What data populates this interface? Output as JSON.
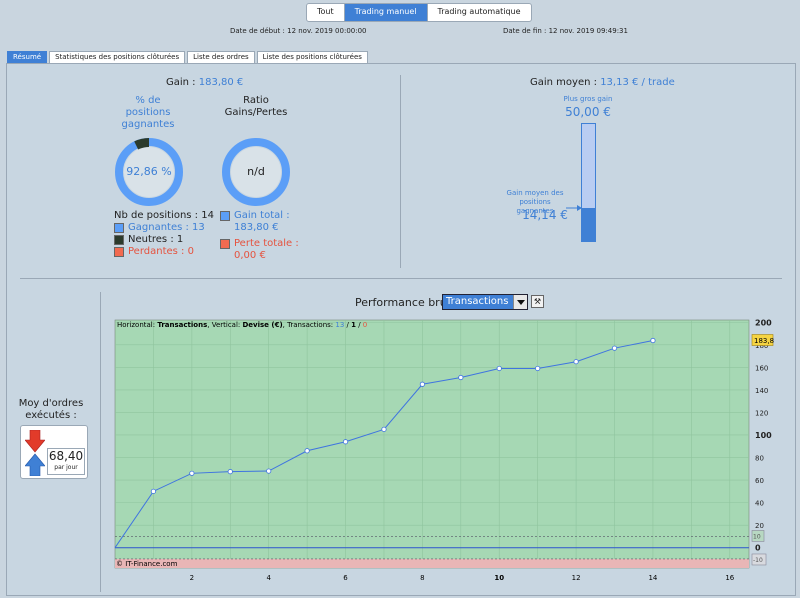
{
  "mode_tabs": [
    {
      "label": "Tout",
      "active": false
    },
    {
      "label": "Trading manuel",
      "active": true
    },
    {
      "label": "Trading automatique",
      "active": false
    }
  ],
  "dates": {
    "start": "Date de début : 12 nov. 2019 00:00:00",
    "end": "Date de fin : 12 nov. 2019 09:49:31"
  },
  "subtabs": [
    {
      "label": "Résumé",
      "active": true
    },
    {
      "label": "Statistiques des positions clôturées",
      "active": false
    },
    {
      "label": "Liste des ordres",
      "active": false
    },
    {
      "label": "Liste des positions clôturées",
      "active": false
    }
  ],
  "summary": {
    "gain_label": "Gain :",
    "gain_value": "183,80 €",
    "pct_title": "% de positions gagnantes",
    "pct_value": "92,86 %",
    "pct_fraction": 0.9286,
    "ratio_title": "Ratio Gains/Pertes",
    "ratio_value": "n/d",
    "nb_positions": "Nb de positions : 14",
    "gagnantes": "Gagnantes : 13",
    "neutres": "Neutres : 1",
    "perdantes": "Perdantes : 0",
    "gain_total_label": "Gain total :",
    "gain_total_value": "183,80 €",
    "perte_totale_label": "Perte totale :",
    "perte_totale_value": "0,00 €"
  },
  "gain_moyen": {
    "label": "Gain moyen :",
    "value": "13,13 € / trade",
    "plus_gros_label": "Plus gros gain",
    "plus_gros_value": "50,00 €",
    "moy_gagnantes_label": "Gain moyen des positions gagnantes",
    "moy_gagnantes_value": "14,14 €",
    "fill_fraction": 0.2828
  },
  "orders": {
    "title": "Moy d'ordres exécutés :",
    "value": "68,40",
    "unit": "par jour"
  },
  "performance": {
    "label": "Performance brute",
    "select_value": "Transactions"
  },
  "chart_data": {
    "type": "line",
    "header": {
      "prefix": "Horizontal: ",
      "h_value": "Transactions",
      "mid": ", Vertical: ",
      "v_value": "Devise (€)",
      "tx_label": ", Transactions: ",
      "tx_win": "13",
      "tx_sep1": " / ",
      "tx_neutral": "1",
      "tx_sep2": " / ",
      "tx_loss": "0"
    },
    "x": [
      0,
      1,
      2,
      3,
      4,
      5,
      6,
      7,
      8,
      9,
      10,
      11,
      12,
      13,
      14
    ],
    "y": [
      0,
      50,
      66,
      67.5,
      68,
      86,
      94,
      105,
      145,
      151,
      159,
      159,
      165,
      177,
      183.8
    ],
    "xlim": [
      0,
      16.5
    ],
    "ylim": [
      -18,
      202
    ],
    "x_ticks": [
      "2",
      "4",
      "6",
      "8",
      "10",
      "12",
      "14",
      "16"
    ],
    "y_ticks": [
      "200",
      "180",
      "160",
      "140",
      "120",
      "100",
      "80",
      "60",
      "40",
      "20",
      "0"
    ],
    "last_value_label": "183,8",
    "upper_band_label": "10",
    "lower_band_label": "-10",
    "watermark": "© IT-Finance.com",
    "colors": {
      "line": "#3f74e0",
      "area": "#a6d8b4",
      "loss": "#e9b6b6"
    }
  }
}
